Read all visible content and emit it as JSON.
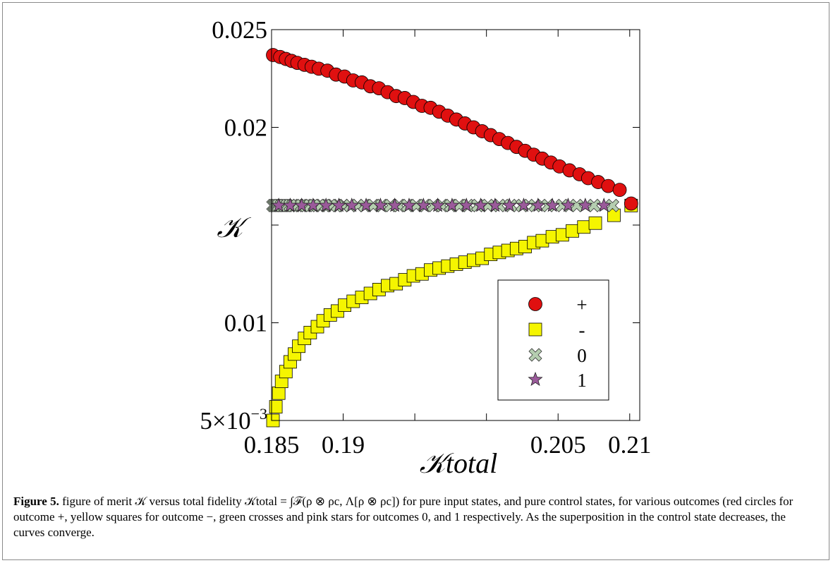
{
  "figure": {
    "label": "Figure 5.",
    "caption": "figure of merit 𝒦 versus total fidelity 𝒦total = ∫ℱ(ρ ⊗ ρc, Λ[ρ ⊗ ρc]) for pure input states, and pure control states, for various outcomes (red circles for outcome +, yellow squares for outcome −, green crosses and pink stars for outcomes 0, and 1 respectively. As the superposition in the control state decreases, the curves converge."
  },
  "chart_data": {
    "type": "scatter",
    "title": "",
    "xlabel": "𝒦total",
    "ylabel": "𝒦",
    "xlim": [
      0.185,
      0.2107
    ],
    "ylim": [
      0.005,
      0.025
    ],
    "xticks": [
      {
        "value": 0.185,
        "label": "0.185"
      },
      {
        "value": 0.19,
        "label": "0.19"
      },
      {
        "value": 0.205,
        "label": "0.205"
      },
      {
        "value": 0.21,
        "label": "0.21"
      }
    ],
    "xticks_minor": [
      0.195,
      0.2
    ],
    "yticks": [
      {
        "value": 0.025,
        "label": "0.025"
      },
      {
        "value": 0.02,
        "label": "0.02"
      },
      {
        "value": 0.01,
        "label": "0.01"
      },
      {
        "value": 0.005,
        "label": "5×10−3"
      }
    ],
    "yticks_minor": [
      0.015
    ],
    "grid": false,
    "legend_position": "lower-right",
    "series": [
      {
        "name": "+",
        "marker": "circle",
        "color": "#e01010",
        "x": [
          0.1851,
          0.1856,
          0.186,
          0.1864,
          0.1868,
          0.1873,
          0.1878,
          0.1883,
          0.1889,
          0.1895,
          0.1901,
          0.1907,
          0.1913,
          0.1919,
          0.1925,
          0.1931,
          0.1937,
          0.1943,
          0.1949,
          0.1955,
          0.1961,
          0.1967,
          0.1973,
          0.1979,
          0.1985,
          0.1991,
          0.1997,
          0.2003,
          0.2009,
          0.2015,
          0.2021,
          0.2027,
          0.2033,
          0.2039,
          0.2045,
          0.2051,
          0.2058,
          0.2065,
          0.2071,
          0.2078,
          0.2085,
          0.2093,
          0.2101
        ],
        "y": [
          0.0237,
          0.0236,
          0.0235,
          0.0234,
          0.0233,
          0.0232,
          0.0231,
          0.023,
          0.0229,
          0.0227,
          0.0226,
          0.0224,
          0.0223,
          0.0221,
          0.022,
          0.0218,
          0.0216,
          0.0215,
          0.0213,
          0.0211,
          0.021,
          0.0208,
          0.0206,
          0.0204,
          0.0202,
          0.02,
          0.0198,
          0.0196,
          0.0194,
          0.0192,
          0.019,
          0.0188,
          0.0186,
          0.0184,
          0.0182,
          0.018,
          0.0178,
          0.0176,
          0.0174,
          0.0172,
          0.017,
          0.0168,
          0.0161
        ]
      },
      {
        "name": "-",
        "marker": "square",
        "color": "#f5f500",
        "x": [
          0.1851,
          0.1853,
          0.1855,
          0.1857,
          0.186,
          0.1863,
          0.1866,
          0.1869,
          0.1873,
          0.1877,
          0.1882,
          0.1886,
          0.1891,
          0.1896,
          0.1901,
          0.1907,
          0.1913,
          0.1919,
          0.1925,
          0.1931,
          0.1937,
          0.1943,
          0.1949,
          0.1955,
          0.1961,
          0.1967,
          0.1973,
          0.1979,
          0.1985,
          0.1991,
          0.1997,
          0.2003,
          0.2009,
          0.2015,
          0.2021,
          0.2027,
          0.2033,
          0.2039,
          0.2046,
          0.2053,
          0.206,
          0.2068,
          0.2076,
          0.2089,
          0.2101
        ],
        "y": [
          0.005,
          0.0057,
          0.0064,
          0.007,
          0.0075,
          0.008,
          0.0084,
          0.0088,
          0.0092,
          0.0095,
          0.0098,
          0.0101,
          0.0104,
          0.0106,
          0.0109,
          0.0111,
          0.0113,
          0.0115,
          0.0117,
          0.0119,
          0.012,
          0.0122,
          0.0124,
          0.0125,
          0.0127,
          0.0128,
          0.0129,
          0.013,
          0.0131,
          0.0132,
          0.0133,
          0.0135,
          0.0136,
          0.0137,
          0.0138,
          0.0139,
          0.0141,
          0.0142,
          0.0144,
          0.0145,
          0.0147,
          0.0149,
          0.0151,
          0.0155,
          0.016
        ]
      },
      {
        "name": "0",
        "marker": "cross",
        "color": "#b5ceb0",
        "x": [
          0.1851,
          0.1852,
          0.1853,
          0.1854,
          0.1855,
          0.1857,
          0.1859,
          0.1861,
          0.1863,
          0.1865,
          0.1868,
          0.1871,
          0.1874,
          0.1877,
          0.188,
          0.1884,
          0.1888,
          0.1892,
          0.1896,
          0.19,
          0.1905,
          0.191,
          0.1915,
          0.1921,
          0.1927,
          0.1933,
          0.1939,
          0.1945,
          0.1951,
          0.1957,
          0.1963,
          0.1969,
          0.1975,
          0.1981,
          0.1987,
          0.1994,
          0.2001,
          0.2009,
          0.2017,
          0.2025,
          0.2034,
          0.2043,
          0.2053,
          0.2063,
          0.2075,
          0.2088
        ],
        "y": [
          0.016,
          0.016,
          0.016,
          0.016,
          0.016,
          0.016,
          0.016,
          0.016,
          0.016,
          0.016,
          0.016,
          0.016,
          0.016,
          0.016,
          0.016,
          0.016,
          0.016,
          0.016,
          0.016,
          0.016,
          0.016,
          0.016,
          0.016,
          0.016,
          0.016,
          0.016,
          0.016,
          0.016,
          0.016,
          0.016,
          0.016,
          0.016,
          0.016,
          0.016,
          0.016,
          0.016,
          0.016,
          0.016,
          0.016,
          0.016,
          0.016,
          0.016,
          0.016,
          0.016,
          0.016,
          0.016
        ]
      },
      {
        "name": "1",
        "marker": "star",
        "color": "#9a5a9a",
        "x": [
          0.1855,
          0.1863,
          0.1871,
          0.1879,
          0.1888,
          0.1897,
          0.1906,
          0.1916,
          0.1926,
          0.1936,
          0.1946,
          0.1956,
          0.1966,
          0.1976,
          0.1986,
          0.1996,
          0.2006,
          0.2016,
          0.2026,
          0.2036,
          0.2046,
          0.2057,
          0.2069,
          0.2082
        ],
        "y": [
          0.016,
          0.016,
          0.016,
          0.016,
          0.016,
          0.016,
          0.016,
          0.016,
          0.016,
          0.016,
          0.016,
          0.016,
          0.016,
          0.016,
          0.016,
          0.016,
          0.016,
          0.016,
          0.016,
          0.016,
          0.016,
          0.016,
          0.016,
          0.016
        ]
      }
    ]
  }
}
